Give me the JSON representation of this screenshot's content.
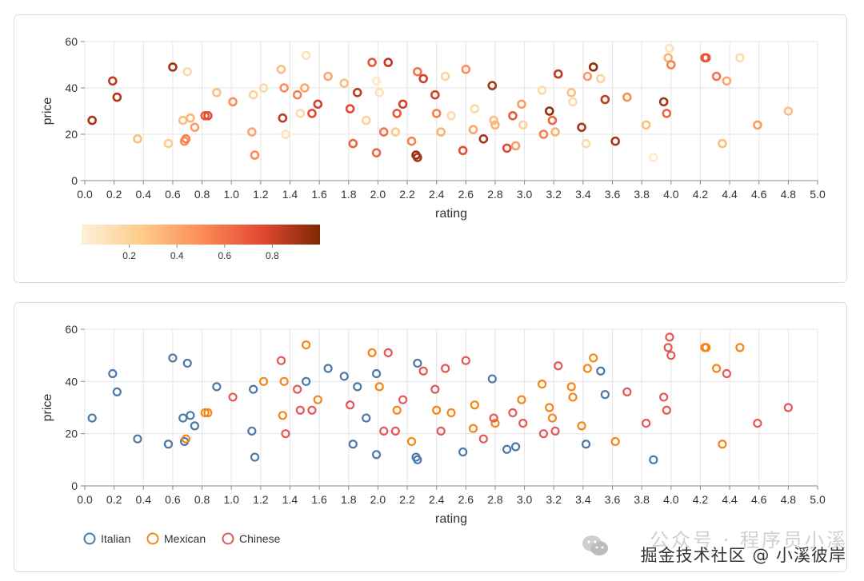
{
  "watermark": {
    "faint_text": "公众号 · 程序员小溪",
    "text": "掘金技术社区 @ 小溪彼岸",
    "logo_icon": "wechat-icon"
  },
  "colors": {
    "grid": "#e4e4e4",
    "axis": "#888888",
    "label": "#333333",
    "italian": "#4c78a8",
    "mexican": "#f58518",
    "chinese": "#e45756",
    "gradient": [
      "#fef0d9",
      "#fdcc8a",
      "#fc8d59",
      "#e34a33",
      "#7f2704"
    ]
  },
  "chart_data": [
    {
      "type": "scatter",
      "encoding": "color-by-continuous",
      "xlabel": "rating",
      "ylabel": "price",
      "xlim": [
        0,
        5
      ],
      "ylim": [
        0,
        60
      ],
      "xticks": [
        "0.0",
        "0.2",
        "0.4",
        "0.6",
        "0.8",
        "1.0",
        "1.2",
        "1.4",
        "1.6",
        "1.8",
        "2.0",
        "2.2",
        "2.4",
        "2.6",
        "2.8",
        "3.0",
        "3.2",
        "3.4",
        "3.6",
        "3.8",
        "4.0",
        "4.2",
        "4.4",
        "4.6",
        "4.8",
        "5.0"
      ],
      "yticks": [
        "0",
        "20",
        "40",
        "60"
      ],
      "grid": true,
      "legend": {
        "type": "gradient",
        "position": "bottom-left",
        "ticks": [
          "0.2",
          "0.4",
          "0.6",
          "0.8"
        ],
        "range": [
          0,
          1
        ]
      },
      "points": [
        {
          "x": 0.05,
          "y": 26,
          "c": 0.9
        },
        {
          "x": 0.19,
          "y": 43,
          "c": 0.85
        },
        {
          "x": 0.22,
          "y": 36,
          "c": 0.88
        },
        {
          "x": 0.36,
          "y": 18,
          "c": 0.3
        },
        {
          "x": 0.57,
          "y": 16,
          "c": 0.25
        },
        {
          "x": 0.6,
          "y": 49,
          "c": 0.92
        },
        {
          "x": 0.67,
          "y": 26,
          "c": 0.3
        },
        {
          "x": 0.68,
          "y": 17,
          "c": 0.5
        },
        {
          "x": 0.69,
          "y": 18,
          "c": 0.55
        },
        {
          "x": 0.7,
          "y": 47,
          "c": 0.15
        },
        {
          "x": 0.72,
          "y": 27,
          "c": 0.35
        },
        {
          "x": 0.75,
          "y": 23,
          "c": 0.45
        },
        {
          "x": 0.82,
          "y": 28,
          "c": 0.7
        },
        {
          "x": 0.84,
          "y": 28,
          "c": 0.75
        },
        {
          "x": 0.9,
          "y": 38,
          "c": 0.3
        },
        {
          "x": 1.01,
          "y": 34,
          "c": 0.5
        },
        {
          "x": 1.14,
          "y": 21,
          "c": 0.4
        },
        {
          "x": 1.15,
          "y": 37,
          "c": 0.2
        },
        {
          "x": 1.16,
          "y": 11,
          "c": 0.5
        },
        {
          "x": 1.22,
          "y": 40,
          "c": 0.15
        },
        {
          "x": 1.34,
          "y": 48,
          "c": 0.3
        },
        {
          "x": 1.35,
          "y": 27,
          "c": 0.85
        },
        {
          "x": 1.36,
          "y": 40,
          "c": 0.5
        },
        {
          "x": 1.37,
          "y": 20,
          "c": 0.1
        },
        {
          "x": 1.45,
          "y": 37,
          "c": 0.55
        },
        {
          "x": 1.47,
          "y": 29,
          "c": 0.15
        },
        {
          "x": 1.5,
          "y": 40,
          "c": 0.4
        },
        {
          "x": 1.51,
          "y": 54,
          "c": 0.1
        },
        {
          "x": 1.55,
          "y": 29,
          "c": 0.75
        },
        {
          "x": 1.59,
          "y": 33,
          "c": 0.8
        },
        {
          "x": 1.66,
          "y": 45,
          "c": 0.4
        },
        {
          "x": 1.77,
          "y": 42,
          "c": 0.3
        },
        {
          "x": 1.81,
          "y": 31,
          "c": 0.75
        },
        {
          "x": 1.83,
          "y": 16,
          "c": 0.65
        },
        {
          "x": 1.86,
          "y": 38,
          "c": 0.85
        },
        {
          "x": 1.92,
          "y": 26,
          "c": 0.2
        },
        {
          "x": 1.96,
          "y": 51,
          "c": 0.7
        },
        {
          "x": 1.99,
          "y": 43,
          "c": 0.05
        },
        {
          "x": 1.99,
          "y": 12,
          "c": 0.65
        },
        {
          "x": 2.01,
          "y": 38,
          "c": 0.1
        },
        {
          "x": 2.04,
          "y": 21,
          "c": 0.6
        },
        {
          "x": 2.07,
          "y": 51,
          "c": 0.85
        },
        {
          "x": 2.12,
          "y": 21,
          "c": 0.25
        },
        {
          "x": 2.13,
          "y": 29,
          "c": 0.7
        },
        {
          "x": 2.17,
          "y": 33,
          "c": 0.8
        },
        {
          "x": 2.23,
          "y": 17,
          "c": 0.55
        },
        {
          "x": 2.26,
          "y": 11,
          "c": 0.95
        },
        {
          "x": 2.27,
          "y": 10,
          "c": 0.9
        },
        {
          "x": 2.27,
          "y": 47,
          "c": 0.6
        },
        {
          "x": 2.31,
          "y": 44,
          "c": 0.8
        },
        {
          "x": 2.39,
          "y": 37,
          "c": 0.8
        },
        {
          "x": 2.4,
          "y": 29,
          "c": 0.55
        },
        {
          "x": 2.43,
          "y": 21,
          "c": 0.35
        },
        {
          "x": 2.46,
          "y": 45,
          "c": 0.2
        },
        {
          "x": 2.5,
          "y": 28,
          "c": 0.15
        },
        {
          "x": 2.58,
          "y": 13,
          "c": 0.75
        },
        {
          "x": 2.6,
          "y": 48,
          "c": 0.5
        },
        {
          "x": 2.65,
          "y": 22,
          "c": 0.4
        },
        {
          "x": 2.66,
          "y": 31,
          "c": 0.15
        },
        {
          "x": 2.72,
          "y": 18,
          "c": 0.9
        },
        {
          "x": 2.78,
          "y": 41,
          "c": 0.9
        },
        {
          "x": 2.79,
          "y": 26,
          "c": 0.3
        },
        {
          "x": 2.8,
          "y": 24,
          "c": 0.35
        },
        {
          "x": 2.88,
          "y": 14,
          "c": 0.75
        },
        {
          "x": 2.92,
          "y": 28,
          "c": 0.7
        },
        {
          "x": 2.94,
          "y": 15,
          "c": 0.45
        },
        {
          "x": 2.98,
          "y": 33,
          "c": 0.45
        },
        {
          "x": 2.99,
          "y": 24,
          "c": 0.2
        },
        {
          "x": 3.12,
          "y": 39,
          "c": 0.15
        },
        {
          "x": 3.13,
          "y": 20,
          "c": 0.55
        },
        {
          "x": 3.17,
          "y": 30,
          "c": 0.95
        },
        {
          "x": 3.19,
          "y": 26,
          "c": 0.65
        },
        {
          "x": 3.21,
          "y": 21,
          "c": 0.35
        },
        {
          "x": 3.23,
          "y": 46,
          "c": 0.85
        },
        {
          "x": 3.32,
          "y": 38,
          "c": 0.3
        },
        {
          "x": 3.33,
          "y": 34,
          "c": 0.15
        },
        {
          "x": 3.39,
          "y": 23,
          "c": 0.9
        },
        {
          "x": 3.42,
          "y": 16,
          "c": 0.15
        },
        {
          "x": 3.43,
          "y": 45,
          "c": 0.45
        },
        {
          "x": 3.47,
          "y": 49,
          "c": 0.95
        },
        {
          "x": 3.52,
          "y": 44,
          "c": 0.2
        },
        {
          "x": 3.55,
          "y": 35,
          "c": 0.85
        },
        {
          "x": 3.62,
          "y": 17,
          "c": 0.9
        },
        {
          "x": 3.7,
          "y": 36,
          "c": 0.5
        },
        {
          "x": 3.83,
          "y": 24,
          "c": 0.3
        },
        {
          "x": 3.88,
          "y": 10,
          "c": 0.05
        },
        {
          "x": 3.95,
          "y": 34,
          "c": 0.9
        },
        {
          "x": 3.97,
          "y": 29,
          "c": 0.65
        },
        {
          "x": 3.98,
          "y": 53,
          "c": 0.35
        },
        {
          "x": 3.99,
          "y": 57,
          "c": 0.1
        },
        {
          "x": 4.0,
          "y": 50,
          "c": 0.55
        },
        {
          "x": 4.23,
          "y": 53,
          "c": 0.65
        },
        {
          "x": 4.24,
          "y": 53,
          "c": 0.7
        },
        {
          "x": 4.31,
          "y": 45,
          "c": 0.6
        },
        {
          "x": 4.35,
          "y": 16,
          "c": 0.3
        },
        {
          "x": 4.38,
          "y": 43,
          "c": 0.4
        },
        {
          "x": 4.47,
          "y": 53,
          "c": 0.15
        },
        {
          "x": 4.59,
          "y": 24,
          "c": 0.45
        },
        {
          "x": 4.8,
          "y": 30,
          "c": 0.3
        }
      ]
    },
    {
      "type": "scatter",
      "encoding": "color-by-category",
      "xlabel": "rating",
      "ylabel": "price",
      "xlim": [
        0,
        5
      ],
      "ylim": [
        0,
        60
      ],
      "xticks": [
        "0.0",
        "0.2",
        "0.4",
        "0.6",
        "0.8",
        "1.0",
        "1.2",
        "1.4",
        "1.6",
        "1.8",
        "2.0",
        "2.2",
        "2.4",
        "2.6",
        "2.8",
        "3.0",
        "3.2",
        "3.4",
        "3.6",
        "3.8",
        "4.0",
        "4.2",
        "4.4",
        "4.6",
        "4.8",
        "5.0"
      ],
      "yticks": [
        "0",
        "20",
        "40",
        "60"
      ],
      "grid": true,
      "legend": {
        "type": "categorical",
        "position": "bottom-left"
      },
      "series": [
        {
          "name": "Italian",
          "color": "#4c78a8",
          "points": [
            {
              "x": 0.05,
              "y": 26
            },
            {
              "x": 0.19,
              "y": 43
            },
            {
              "x": 0.22,
              "y": 36
            },
            {
              "x": 0.36,
              "y": 18
            },
            {
              "x": 0.57,
              "y": 16
            },
            {
              "x": 0.6,
              "y": 49
            },
            {
              "x": 0.67,
              "y": 26
            },
            {
              "x": 0.68,
              "y": 17
            },
            {
              "x": 0.7,
              "y": 47
            },
            {
              "x": 0.72,
              "y": 27
            },
            {
              "x": 0.75,
              "y": 23
            },
            {
              "x": 0.9,
              "y": 38
            },
            {
              "x": 1.14,
              "y": 21
            },
            {
              "x": 1.15,
              "y": 37
            },
            {
              "x": 1.16,
              "y": 11
            },
            {
              "x": 1.51,
              "y": 40
            },
            {
              "x": 1.66,
              "y": 45
            },
            {
              "x": 1.77,
              "y": 42
            },
            {
              "x": 1.83,
              "y": 16
            },
            {
              "x": 1.86,
              "y": 38
            },
            {
              "x": 1.92,
              "y": 26
            },
            {
              "x": 1.99,
              "y": 43
            },
            {
              "x": 1.99,
              "y": 12
            },
            {
              "x": 2.26,
              "y": 11
            },
            {
              "x": 2.27,
              "y": 10
            },
            {
              "x": 2.27,
              "y": 47
            },
            {
              "x": 2.58,
              "y": 13
            },
            {
              "x": 2.78,
              "y": 41
            },
            {
              "x": 2.88,
              "y": 14
            },
            {
              "x": 2.94,
              "y": 15
            },
            {
              "x": 3.42,
              "y": 16
            },
            {
              "x": 3.52,
              "y": 44
            },
            {
              "x": 3.55,
              "y": 35
            },
            {
              "x": 3.88,
              "y": 10
            }
          ]
        },
        {
          "name": "Mexican",
          "color": "#f58518",
          "points": [
            {
              "x": 0.69,
              "y": 18
            },
            {
              "x": 0.82,
              "y": 28
            },
            {
              "x": 0.84,
              "y": 28
            },
            {
              "x": 1.22,
              "y": 40
            },
            {
              "x": 1.36,
              "y": 40
            },
            {
              "x": 1.35,
              "y": 27
            },
            {
              "x": 1.51,
              "y": 54
            },
            {
              "x": 1.59,
              "y": 33
            },
            {
              "x": 1.96,
              "y": 51
            },
            {
              "x": 2.01,
              "y": 38
            },
            {
              "x": 2.13,
              "y": 29
            },
            {
              "x": 2.23,
              "y": 17
            },
            {
              "x": 2.4,
              "y": 29
            },
            {
              "x": 2.5,
              "y": 28
            },
            {
              "x": 2.65,
              "y": 22
            },
            {
              "x": 2.66,
              "y": 31
            },
            {
              "x": 2.8,
              "y": 24
            },
            {
              "x": 2.98,
              "y": 33
            },
            {
              "x": 3.12,
              "y": 39
            },
            {
              "x": 3.17,
              "y": 30
            },
            {
              "x": 3.19,
              "y": 26
            },
            {
              "x": 3.32,
              "y": 38
            },
            {
              "x": 3.33,
              "y": 34
            },
            {
              "x": 3.39,
              "y": 23
            },
            {
              "x": 3.43,
              "y": 45
            },
            {
              "x": 3.47,
              "y": 49
            },
            {
              "x": 3.62,
              "y": 17
            },
            {
              "x": 4.23,
              "y": 53
            },
            {
              "x": 4.24,
              "y": 53
            },
            {
              "x": 4.31,
              "y": 45
            },
            {
              "x": 4.35,
              "y": 16
            },
            {
              "x": 4.47,
              "y": 53
            }
          ]
        },
        {
          "name": "Chinese",
          "color": "#e45756",
          "points": [
            {
              "x": 1.01,
              "y": 34
            },
            {
              "x": 1.34,
              "y": 48
            },
            {
              "x": 1.37,
              "y": 20
            },
            {
              "x": 1.45,
              "y": 37
            },
            {
              "x": 1.47,
              "y": 29
            },
            {
              "x": 1.55,
              "y": 29
            },
            {
              "x": 1.81,
              "y": 31
            },
            {
              "x": 2.04,
              "y": 21
            },
            {
              "x": 2.07,
              "y": 51
            },
            {
              "x": 2.12,
              "y": 21
            },
            {
              "x": 2.17,
              "y": 33
            },
            {
              "x": 2.31,
              "y": 44
            },
            {
              "x": 2.39,
              "y": 37
            },
            {
              "x": 2.43,
              "y": 21
            },
            {
              "x": 2.46,
              "y": 45
            },
            {
              "x": 2.6,
              "y": 48
            },
            {
              "x": 2.72,
              "y": 18
            },
            {
              "x": 2.79,
              "y": 26
            },
            {
              "x": 2.92,
              "y": 28
            },
            {
              "x": 2.99,
              "y": 24
            },
            {
              "x": 3.13,
              "y": 20
            },
            {
              "x": 3.21,
              "y": 21
            },
            {
              "x": 3.23,
              "y": 46
            },
            {
              "x": 3.7,
              "y": 36
            },
            {
              "x": 3.83,
              "y": 24
            },
            {
              "x": 3.95,
              "y": 34
            },
            {
              "x": 3.97,
              "y": 29
            },
            {
              "x": 3.98,
              "y": 53
            },
            {
              "x": 3.99,
              "y": 57
            },
            {
              "x": 4.0,
              "y": 50
            },
            {
              "x": 4.38,
              "y": 43
            },
            {
              "x": 4.59,
              "y": 24
            },
            {
              "x": 4.8,
              "y": 30
            }
          ]
        }
      ]
    }
  ]
}
